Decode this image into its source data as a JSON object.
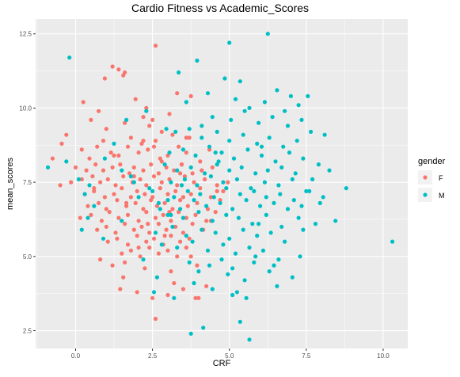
{
  "chart_data": {
    "type": "scatter",
    "title": "Cardio Fitness vs Academic_Scores",
    "xlabel": "CRF",
    "ylabel": "mean_scores",
    "xlim": [
      -1.3,
      10.8
    ],
    "ylim": [
      1.9,
      13.0
    ],
    "x_ticks": [
      0.0,
      2.5,
      5.0,
      7.5,
      10.0
    ],
    "x_tick_labels": [
      "0.0",
      "2.5",
      "5.0",
      "7.5",
      "10.0"
    ],
    "y_ticks": [
      2.5,
      5.0,
      7.5,
      10.0,
      12.5
    ],
    "y_tick_labels": [
      "2.5",
      "5.0",
      "7.5",
      "10.0",
      "12.5"
    ],
    "grid": true,
    "legend": {
      "title": "gender",
      "position": "right"
    },
    "colors": {
      "F": "#F8766D",
      "M": "#00BFC4",
      "panel": "#EBEBEB",
      "grid": "#FFFFFF"
    },
    "series": [
      {
        "name": "F",
        "x": [
          1.2,
          1.4,
          1.55,
          2.6,
          1.6,
          0.95,
          0.25,
          0.75,
          0.5,
          1.95,
          2.3,
          2.2,
          3.3,
          3.75,
          2.4,
          1.0,
          1.6,
          2.5,
          2.8,
          3.05,
          0.9,
          1.8,
          2.15,
          2.6,
          3.15,
          3.7,
          -0.75,
          -0.45,
          -0.3,
          0.2,
          0.45,
          0.7,
          1.15,
          1.4,
          1.7,
          2.05,
          2.35,
          2.75,
          3.0,
          3.35,
          3.6,
          4.05,
          4.35,
          0.0,
          0.35,
          0.65,
          0.9,
          1.2,
          1.45,
          1.75,
          1.9,
          2.2,
          2.45,
          2.7,
          2.95,
          3.2,
          3.45,
          3.8,
          4.1,
          4.45,
          -0.5,
          -0.15,
          0.2,
          0.55,
          0.8,
          1.05,
          1.3,
          1.55,
          1.85,
          2.1,
          2.3,
          2.55,
          2.8,
          3.05,
          3.3,
          3.55,
          3.85,
          4.2,
          4.6,
          4.95,
          0.3,
          0.6,
          0.95,
          1.25,
          1.5,
          1.8,
          2.0,
          2.25,
          2.5,
          2.75,
          3.0,
          3.25,
          3.5,
          3.75,
          4.05,
          4.4,
          4.8,
          0.4,
          0.75,
          1.0,
          1.35,
          1.65,
          1.95,
          2.2,
          2.45,
          2.65,
          2.9,
          3.15,
          3.4,
          3.65,
          3.95,
          4.3,
          4.7,
          0.15,
          0.5,
          0.85,
          1.1,
          1.4,
          1.7,
          2.05,
          2.3,
          2.6,
          2.85,
          3.1,
          3.35,
          3.6,
          3.9,
          4.25,
          4.55,
          0.7,
          1.0,
          1.3,
          1.6,
          1.9,
          2.15,
          2.4,
          2.7,
          2.95,
          3.25,
          3.5,
          3.8,
          4.15,
          1.05,
          1.35,
          1.7,
          2.0,
          2.3,
          2.55,
          2.85,
          3.1,
          3.4,
          3.7,
          1.5,
          1.8,
          2.1,
          2.4,
          2.7,
          3.0,
          3.3,
          3.6,
          0.8,
          1.2,
          1.6,
          2.25,
          3.1,
          3.95,
          1.55,
          3.2,
          4.25,
          1.45,
          2.0,
          2.5,
          3.0,
          3.5,
          4.0,
          2.6,
          3.9,
          0.6,
          1.9,
          2.8,
          3.4,
          4.6,
          1.25,
          2.2,
          3.6,
          1.65,
          2.35,
          3.05,
          2.05,
          2.9,
          3.75,
          2.55,
          3.45,
          4.4
        ],
        "y": [
          11.4,
          11.3,
          11.1,
          12.1,
          11.2,
          11.0,
          10.2,
          9.9,
          9.6,
          10.3,
          10.0,
          9.7,
          10.5,
          10.4,
          9.4,
          9.3,
          9.5,
          9.6,
          9.2,
          9.8,
          8.9,
          9.0,
          8.8,
          8.9,
          9.1,
          9.0,
          8.3,
          8.8,
          9.1,
          8.6,
          8.3,
          8.7,
          8.5,
          8.4,
          8.7,
          8.5,
          8.6,
          8.3,
          8.4,
          8.7,
          8.5,
          8.2,
          8.6,
          8.0,
          7.9,
          8.1,
          7.9,
          8.0,
          8.1,
          7.8,
          8.0,
          7.9,
          8.1,
          7.8,
          8.0,
          7.9,
          8.1,
          7.8,
          7.9,
          8.0,
          7.4,
          7.5,
          7.6,
          7.7,
          7.5,
          7.6,
          7.4,
          7.7,
          7.5,
          7.6,
          7.4,
          7.7,
          7.5,
          7.6,
          7.4,
          7.7,
          7.5,
          7.6,
          7.4,
          7.5,
          7.1,
          7.2,
          7.0,
          7.1,
          7.3,
          7.0,
          7.2,
          7.1,
          7.0,
          7.3,
          7.1,
          7.2,
          7.0,
          7.1,
          7.3,
          7.0,
          7.2,
          6.7,
          6.8,
          6.6,
          6.9,
          6.7,
          6.8,
          6.6,
          6.9,
          6.7,
          6.8,
          6.6,
          6.9,
          6.7,
          6.8,
          6.6,
          6.9,
          6.3,
          6.4,
          6.2,
          6.5,
          6.3,
          6.4,
          6.2,
          6.5,
          6.3,
          6.4,
          6.2,
          6.5,
          6.3,
          6.4,
          6.2,
          6.5,
          5.9,
          6.0,
          5.8,
          6.1,
          5.9,
          6.0,
          5.8,
          6.1,
          5.9,
          6.0,
          5.8,
          6.1,
          5.9,
          5.5,
          5.6,
          5.4,
          5.7,
          5.5,
          5.6,
          5.4,
          5.7,
          5.5,
          5.6,
          5.1,
          5.2,
          5.0,
          5.3,
          5.1,
          5.2,
          5.0,
          5.3,
          4.9,
          4.7,
          4.8,
          4.6,
          4.5,
          4.7,
          4.3,
          4.1,
          4.0,
          3.9,
          3.8,
          3.6,
          3.7,
          3.9,
          3.6,
          2.9,
          3.6,
          7.3,
          7.7,
          8.2,
          7.8,
          7.2,
          8.4,
          8.9,
          9.0,
          6.8,
          6.1,
          6.5,
          5.3,
          5.7,
          5.0,
          8.7,
          8.1,
          6.2
        ],
        "source": "estimated from plot"
      },
      {
        "name": "M",
        "x": [
          -0.2,
          6.25,
          5.0,
          3.35,
          3.95,
          4.85,
          5.35,
          6.55,
          7.0,
          7.25,
          3.6,
          4.3,
          5.2,
          5.65,
          6.15,
          6.8,
          7.55,
          4.45,
          5.05,
          5.5,
          5.95,
          6.4,
          6.9,
          7.35,
          8.1,
          3.25,
          3.7,
          4.1,
          4.6,
          5.0,
          5.45,
          5.9,
          6.3,
          6.75,
          7.2,
          7.65,
          3.05,
          3.5,
          3.9,
          4.35,
          4.75,
          5.15,
          5.6,
          6.05,
          6.5,
          6.95,
          7.4,
          7.9,
          -0.9,
          -0.3,
          2.9,
          3.3,
          3.75,
          4.2,
          4.6,
          5.0,
          5.4,
          5.85,
          6.25,
          6.7,
          7.15,
          7.7,
          8.25,
          8.8,
          0.1,
          0.45,
          1.8,
          3.1,
          3.55,
          3.95,
          4.4,
          4.8,
          5.25,
          5.7,
          6.15,
          6.6,
          7.05,
          7.5,
          0.3,
          2.5,
          3.2,
          3.65,
          4.05,
          4.5,
          4.9,
          5.35,
          5.8,
          6.2,
          6.65,
          7.1,
          7.6,
          8.05,
          0.6,
          2.7,
          3.4,
          3.85,
          4.25,
          4.7,
          5.1,
          5.55,
          6.0,
          6.45,
          6.9,
          7.35,
          7.95,
          8.45,
          10.3,
          0.4,
          1.5,
          3.0,
          3.5,
          4.0,
          4.45,
          4.9,
          5.3,
          5.75,
          6.2,
          6.7,
          7.25,
          7.8,
          0.2,
          0.9,
          2.6,
          3.15,
          3.6,
          4.1,
          4.55,
          5.0,
          5.45,
          5.9,
          6.35,
          6.8,
          7.4,
          2.8,
          3.3,
          3.8,
          4.3,
          4.8,
          5.2,
          5.65,
          6.1,
          6.6,
          7.3,
          2.2,
          3.7,
          4.35,
          5.1,
          5.8,
          6.3,
          2.65,
          4.0,
          4.95,
          5.5,
          6.55,
          3.85,
          4.45,
          5.25,
          2.55,
          3.2,
          5.1,
          5.55,
          4.15,
          3.75,
          5.35,
          5.65,
          1.5,
          1.9,
          0.95,
          1.25,
          2.05,
          2.4,
          2.75,
          3.1,
          1.65,
          2.3,
          2.95,
          4.1,
          4.75,
          5.85,
          6.45,
          7.05,
          3.45,
          3.0,
          6.05,
          4.65,
          5.95,
          4.55
        ],
        "y": [
          11.7,
          12.5,
          12.2,
          11.2,
          11.6,
          11.0,
          10.9,
          10.6,
          10.4,
          10.1,
          10.2,
          10.5,
          10.3,
          10.0,
          10.2,
          9.9,
          10.4,
          9.7,
          9.6,
          9.9,
          9.5,
          9.7,
          9.4,
          9.6,
          9.1,
          9.2,
          9.3,
          9.0,
          9.2,
          8.9,
          9.1,
          8.8,
          9.0,
          8.7,
          8.9,
          9.2,
          8.5,
          8.6,
          8.4,
          8.7,
          8.5,
          8.3,
          8.6,
          8.4,
          8.2,
          8.5,
          8.3,
          8.1,
          8.0,
          8.2,
          8.1,
          7.9,
          8.0,
          7.8,
          8.1,
          7.9,
          8.0,
          7.8,
          7.9,
          8.0,
          7.8,
          7.6,
          7.9,
          7.3,
          7.6,
          7.4,
          7.7,
          7.5,
          7.6,
          7.4,
          7.7,
          7.5,
          7.6,
          7.3,
          7.5,
          7.4,
          7.6,
          7.2,
          7.1,
          7.2,
          7.0,
          7.2,
          7.1,
          7.0,
          7.3,
          7.1,
          7.2,
          7.0,
          7.1,
          6.9,
          7.2,
          7.0,
          6.7,
          6.8,
          6.6,
          6.9,
          6.7,
          6.8,
          6.6,
          6.9,
          6.7,
          6.8,
          6.6,
          6.7,
          6.8,
          6.2,
          5.5,
          6.3,
          6.2,
          6.4,
          6.3,
          6.5,
          6.2,
          6.4,
          6.3,
          6.1,
          6.4,
          6.0,
          6.3,
          6.1,
          5.9,
          5.6,
          5.8,
          6.0,
          5.7,
          5.9,
          5.8,
          5.6,
          5.9,
          5.7,
          5.8,
          5.5,
          5.9,
          5.4,
          5.3,
          5.5,
          5.2,
          5.4,
          5.1,
          5.3,
          5.2,
          4.9,
          5.0,
          4.9,
          4.8,
          4.7,
          4.6,
          4.8,
          4.5,
          4.3,
          4.5,
          4.4,
          4.2,
          4.0,
          4.1,
          3.9,
          3.8,
          3.8,
          3.6,
          3.7,
          3.6,
          2.6,
          2.4,
          2.8,
          2.2,
          7.9,
          7.5,
          8.3,
          8.8,
          7.0,
          7.3,
          6.6,
          6.4,
          9.6,
          9.9,
          9.3,
          9.4,
          4.9,
          5.0,
          4.7,
          4.3,
          7.4,
          6.9,
          8.7,
          8.2,
          6.1,
          8.5
        ],
        "source": "estimated from plot"
      }
    ]
  }
}
